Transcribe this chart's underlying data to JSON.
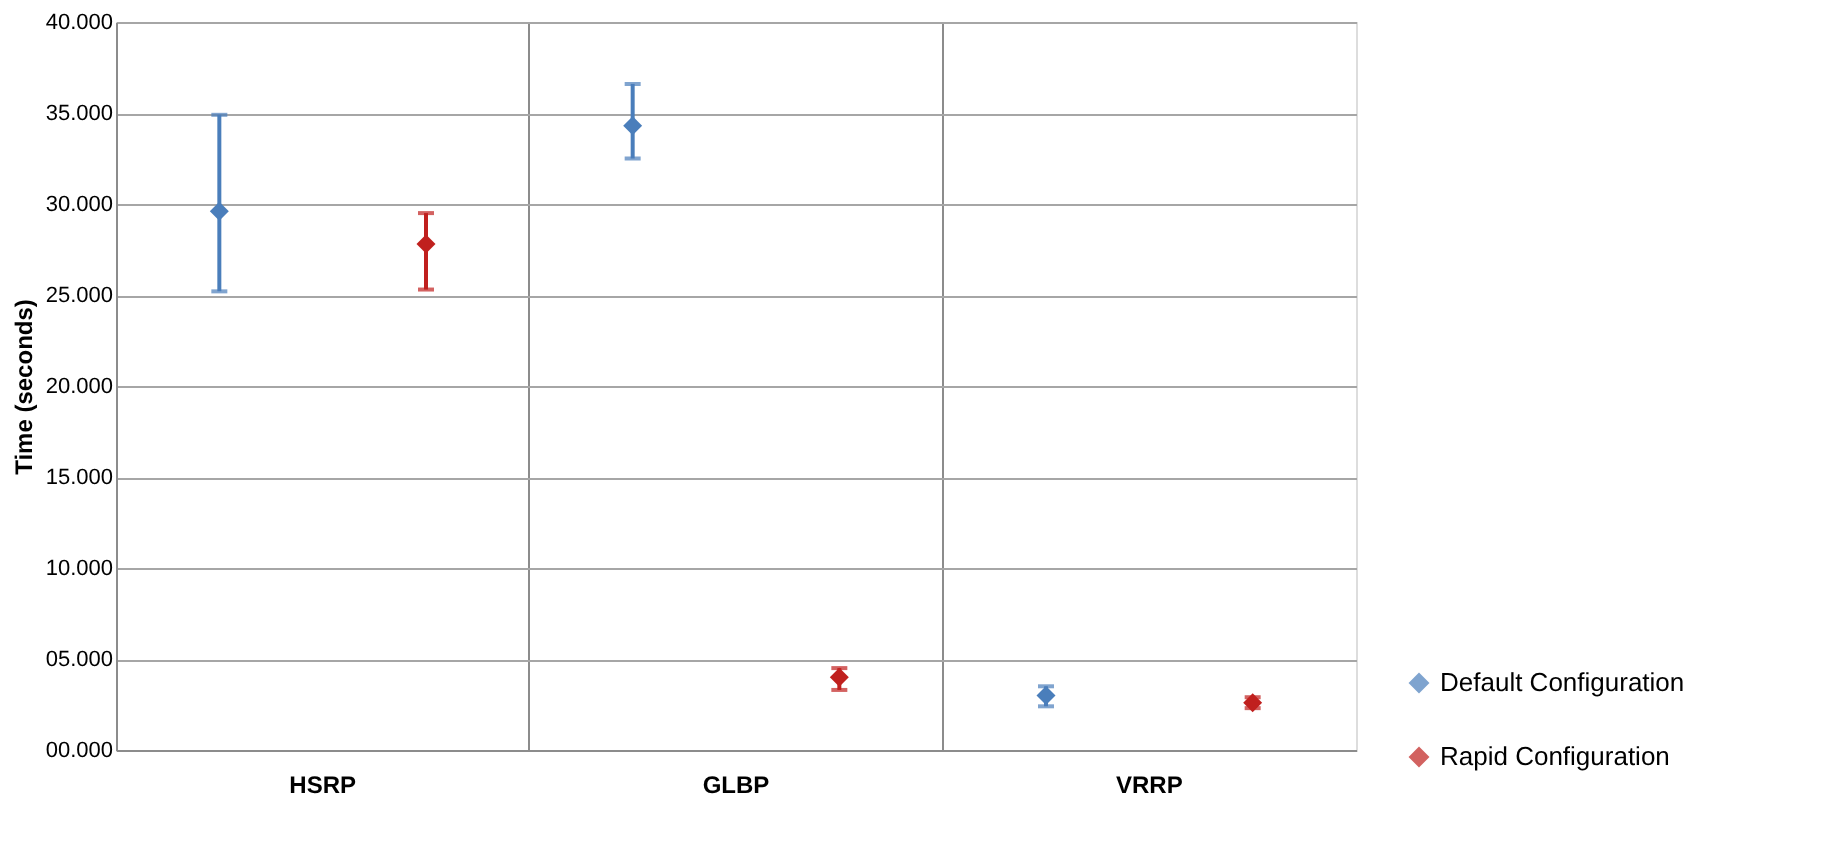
{
  "chart_data": {
    "type": "scatter",
    "ylabel": "Time (seconds)",
    "categories": [
      "HSRP",
      "GLBP",
      "VRRP"
    ],
    "series": [
      {
        "name": "Default Configuration",
        "color": "#4a7ebb",
        "values": [
          29.6,
          34.3,
          3.0
        ],
        "errors": [
          [
            25.2,
            34.9
          ],
          [
            32.5,
            36.6
          ],
          [
            2.4,
            3.5
          ]
        ]
      },
      {
        "name": "Rapid Configuration",
        "color": "#c0201e",
        "values": [
          27.8,
          4.0,
          2.6
        ],
        "errors": [
          [
            25.3,
            29.5
          ],
          [
            3.3,
            4.5
          ],
          [
            2.3,
            2.9
          ]
        ]
      }
    ],
    "ylim": [
      0,
      40
    ],
    "yticks": [
      {
        "value": 0,
        "label": "00.000"
      },
      {
        "value": 5,
        "label": "05.000"
      },
      {
        "value": 10,
        "label": "10.000"
      },
      {
        "value": 15,
        "label": "15.000"
      },
      {
        "value": 20,
        "label": "20.000"
      },
      {
        "value": 25,
        "label": "25.000"
      },
      {
        "value": 30,
        "label": "30.000"
      },
      {
        "value": 35,
        "label": "35.000"
      },
      {
        "value": 40,
        "label": "40.000"
      }
    ],
    "grid": true,
    "legend": "bottom right",
    "marker": "diamond"
  }
}
